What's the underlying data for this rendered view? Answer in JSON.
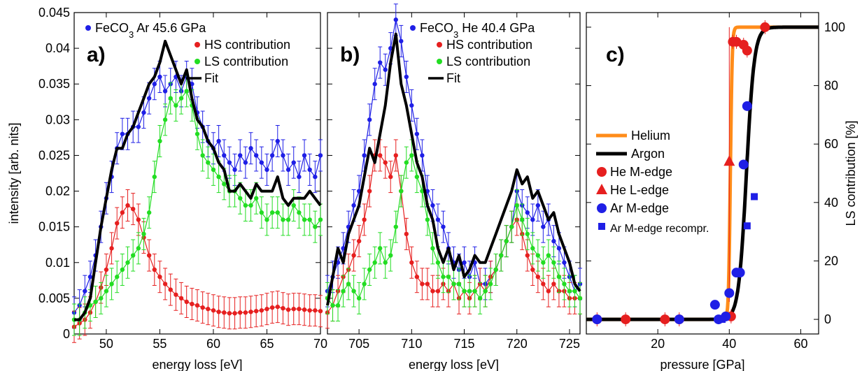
{
  "chart_data": [
    {
      "type": "scatter",
      "panel_label": "a)",
      "xlabel": "energy loss [eV]",
      "ylabel": "intensity [arb. nits]",
      "xlim": [
        47,
        70
      ],
      "ylim": [
        0,
        0.045
      ],
      "xticks": [
        50,
        55,
        60,
        65,
        70
      ],
      "yticks": [
        0,
        0.005,
        0.01,
        0.015,
        0.02,
        0.025,
        0.03,
        0.035,
        0.04,
        0.045
      ],
      "legend": {
        "title_html": [
          "FeCO",
          "3",
          " Ar 45.6 GPa"
        ],
        "entries": [
          "HS contribution",
          "LS contribution",
          "Fit"
        ],
        "placement": "top"
      },
      "series": [
        {
          "name": "FeCO3 Ar 45.6 GPa",
          "color": "#1f1fe6",
          "marker": "dot",
          "errorbars": true,
          "x": [
            47,
            47.5,
            48,
            48.5,
            49,
            49.5,
            50,
            50.5,
            51,
            51.5,
            52,
            52.5,
            53,
            53.5,
            54,
            54.5,
            55,
            55.5,
            56,
            56.5,
            57,
            57.5,
            58,
            58.5,
            59,
            59.5,
            60,
            60.5,
            61,
            61.5,
            62,
            62.5,
            63,
            63.5,
            64,
            64.5,
            65,
            65.5,
            66,
            66.5,
            67,
            67.5,
            68,
            68.5,
            69,
            69.5,
            70
          ],
          "y": [
            0.003,
            0.004,
            0.006,
            0.008,
            0.011,
            0.015,
            0.019,
            0.022,
            0.026,
            0.028,
            0.028,
            0.029,
            0.029,
            0.031,
            0.033,
            0.035,
            0.036,
            0.034,
            0.035,
            0.036,
            0.034,
            0.036,
            0.035,
            0.031,
            0.029,
            0.027,
            0.026,
            0.027,
            0.025,
            0.024,
            0.023,
            0.025,
            0.024,
            0.026,
            0.025,
            0.024,
            0.023,
            0.025,
            0.027,
            0.025,
            0.023,
            0.024,
            0.022,
            0.025,
            0.023,
            0.022,
            0.025
          ]
        },
        {
          "name": "HS contribution",
          "color": "#e61f1f",
          "marker": "dot",
          "errorbars": true,
          "x": [
            47,
            47.5,
            48,
            48.5,
            49,
            49.5,
            50,
            50.5,
            51,
            51.5,
            52,
            52.5,
            53,
            53.5,
            54,
            54.5,
            55,
            55.5,
            56,
            56.5,
            57,
            57.5,
            58,
            58.5,
            59,
            59.5,
            60,
            60.5,
            61,
            61.5,
            62,
            62.5,
            63,
            63.5,
            64,
            64.5,
            65,
            65.5,
            66,
            66.5,
            67,
            67.5,
            68,
            68.5,
            69,
            69.5,
            70
          ],
          "y": [
            0.001,
            0.0015,
            0.002,
            0.003,
            0.0045,
            0.0065,
            0.009,
            0.012,
            0.0155,
            0.017,
            0.018,
            0.0175,
            0.016,
            0.0135,
            0.011,
            0.009,
            0.008,
            0.007,
            0.0062,
            0.0055,
            0.005,
            0.0045,
            0.0042,
            0.004,
            0.0037,
            0.0035,
            0.0033,
            0.0031,
            0.003,
            0.0029,
            0.0029,
            0.003,
            0.003,
            0.0031,
            0.0032,
            0.0033,
            0.0035,
            0.0037,
            0.0038,
            0.0036,
            0.0034,
            0.0035,
            0.0035,
            0.0034,
            0.0033,
            0.0033,
            0.0032
          ]
        },
        {
          "name": "LS contribution",
          "color": "#22dd22",
          "marker": "dot",
          "errorbars": true,
          "x": [
            47,
            47.5,
            48,
            48.5,
            49,
            49.5,
            50,
            50.5,
            51,
            51.5,
            52,
            52.5,
            53,
            53.5,
            54,
            54.5,
            55,
            55.5,
            56,
            56.5,
            57,
            57.5,
            58,
            58.5,
            59,
            59.5,
            60,
            60.5,
            61,
            61.5,
            62,
            62.5,
            63,
            63.5,
            64,
            64.5,
            65,
            65.5,
            66,
            66.5,
            67,
            67.5,
            68,
            68.5,
            69,
            69.5,
            70
          ],
          "y": [
            0.002,
            0.002,
            0.003,
            0.004,
            0.0045,
            0.005,
            0.006,
            0.007,
            0.008,
            0.009,
            0.01,
            0.011,
            0.012,
            0.014,
            0.017,
            0.022,
            0.027,
            0.03,
            0.033,
            0.032,
            0.033,
            0.034,
            0.032,
            0.028,
            0.025,
            0.024,
            0.023,
            0.022,
            0.021,
            0.02,
            0.02,
            0.019,
            0.018,
            0.018,
            0.019,
            0.017,
            0.016,
            0.017,
            0.017,
            0.016,
            0.016,
            0.018,
            0.017,
            0.016,
            0.016,
            0.015,
            0.016
          ]
        },
        {
          "name": "Fit",
          "color": "#000000",
          "marker": "line",
          "x": [
            47,
            47.5,
            48,
            48.5,
            49,
            49.5,
            50,
            50.5,
            51,
            51.5,
            52,
            52.5,
            53,
            53.5,
            54,
            54.5,
            55,
            55.5,
            56,
            56.5,
            57,
            57.5,
            58,
            58.5,
            59,
            59.5,
            60,
            60.5,
            61,
            61.5,
            62,
            62.5,
            63,
            63.5,
            64,
            64.5,
            65,
            65.5,
            66,
            66.5,
            67,
            67.5,
            68,
            68.5,
            69,
            69.5,
            70
          ],
          "y": [
            0.002,
            0.002,
            0.003,
            0.005,
            0.01,
            0.015,
            0.019,
            0.023,
            0.026,
            0.026,
            0.028,
            0.029,
            0.031,
            0.033,
            0.035,
            0.036,
            0.038,
            0.041,
            0.039,
            0.037,
            0.035,
            0.037,
            0.033,
            0.03,
            0.029,
            0.027,
            0.026,
            0.024,
            0.023,
            0.02,
            0.02,
            0.021,
            0.02,
            0.019,
            0.021,
            0.02,
            0.02,
            0.02,
            0.022,
            0.019,
            0.018,
            0.019,
            0.019,
            0.019,
            0.02,
            0.019,
            0.018
          ]
        }
      ]
    },
    {
      "type": "scatter",
      "panel_label": "b)",
      "xlabel": "energy loss [eV]",
      "xlim": [
        702,
        726
      ],
      "ylim": [
        0,
        0.045
      ],
      "xticks": [
        705,
        710,
        715,
        720,
        725
      ],
      "legend": {
        "title_html": [
          "FeCO",
          "3",
          " He 40.4 GPa"
        ],
        "entries": [
          "HS contribution",
          "LS contribution",
          "Fit"
        ],
        "placement": "top"
      },
      "series": [
        {
          "name": "FeCO3 He 40.4 GPa",
          "color": "#1f1fe6",
          "marker": "dot",
          "errorbars": true,
          "x": [
            702,
            702.5,
            703,
            703.5,
            704,
            704.5,
            705,
            705.5,
            706,
            706.5,
            707,
            707.5,
            708,
            708.5,
            709,
            709.5,
            710,
            710.5,
            711,
            711.5,
            712,
            712.5,
            713,
            713.5,
            714,
            714.5,
            715,
            715.5,
            716,
            716.5,
            717,
            717.5,
            718,
            718.5,
            719,
            719.5,
            720,
            720.5,
            721,
            721.5,
            722,
            722.5,
            723,
            723.5,
            724,
            724.5,
            725,
            725.5,
            726
          ],
          "y": [
            0.006,
            0.008,
            0.01,
            0.012,
            0.015,
            0.018,
            0.02,
            0.025,
            0.03,
            0.035,
            0.038,
            0.037,
            0.04,
            0.044,
            0.041,
            0.036,
            0.032,
            0.028,
            0.025,
            0.02,
            0.018,
            0.016,
            0.015,
            0.012,
            0.01,
            0.009,
            0.01,
            0.008,
            0.01,
            0.007,
            0.007,
            0.008,
            0.009,
            0.011,
            0.013,
            0.015,
            0.02,
            0.018,
            0.017,
            0.016,
            0.018,
            0.015,
            0.016,
            0.013,
            0.012,
            0.01,
            0.008,
            0.006,
            0.007
          ]
        },
        {
          "name": "HS contribution",
          "color": "#e61f1f",
          "marker": "dot",
          "errorbars": true,
          "x": [
            702,
            702.5,
            703,
            703.5,
            704,
            704.5,
            705,
            705.5,
            706,
            706.5,
            707,
            707.5,
            708,
            708.5,
            709,
            709.5,
            710,
            710.5,
            711,
            711.5,
            712,
            712.5,
            713,
            713.5,
            714,
            714.5,
            715,
            715.5,
            716,
            716.5,
            717,
            717.5,
            718,
            718.5,
            719,
            719.5,
            720,
            720.5,
            721,
            721.5,
            722,
            722.5,
            723,
            723.5,
            724,
            724.5,
            725,
            725.5,
            726
          ],
          "y": [
            0.003,
            0.004,
            0.006,
            0.008,
            0.009,
            0.011,
            0.013,
            0.016,
            0.02,
            0.025,
            0.025,
            0.024,
            0.022,
            0.025,
            0.02,
            0.014,
            0.01,
            0.008,
            0.007,
            0.007,
            0.006,
            0.006,
            0.007,
            0.006,
            0.007,
            0.005,
            0.006,
            0.005,
            0.006,
            0.007,
            0.006,
            0.008,
            0.009,
            0.011,
            0.013,
            0.015,
            0.016,
            0.014,
            0.011,
            0.009,
            0.008,
            0.007,
            0.006,
            0.007,
            0.006,
            0.006,
            0.005,
            0.005,
            0.005
          ]
        },
        {
          "name": "LS contribution",
          "color": "#22dd22",
          "marker": "dot",
          "errorbars": true,
          "x": [
            702,
            702.5,
            703,
            703.5,
            704,
            704.5,
            705,
            705.5,
            706,
            706.5,
            707,
            707.5,
            708,
            708.5,
            709,
            709.5,
            710,
            710.5,
            711,
            711.5,
            712,
            712.5,
            713,
            713.5,
            714,
            714.5,
            715,
            715.5,
            716,
            716.5,
            717,
            717.5,
            718,
            718.5,
            719,
            719.5,
            720,
            720.5,
            721,
            721.5,
            722,
            722.5,
            723,
            723.5,
            724,
            724.5,
            725,
            725.5,
            726
          ],
          "y": [
            0.005,
            0.004,
            0.004,
            0.006,
            0.007,
            0.006,
            0.005,
            0.007,
            0.009,
            0.01,
            0.012,
            0.01,
            0.011,
            0.015,
            0.02,
            0.024,
            0.025,
            0.022,
            0.02,
            0.016,
            0.012,
            0.01,
            0.008,
            0.008,
            0.007,
            0.007,
            0.006,
            0.006,
            0.006,
            0.005,
            0.006,
            0.007,
            0.009,
            0.011,
            0.013,
            0.015,
            0.018,
            0.016,
            0.014,
            0.012,
            0.011,
            0.01,
            0.011,
            0.01,
            0.008,
            0.007,
            0.006,
            0.006,
            0.005
          ]
        },
        {
          "name": "Fit",
          "color": "#000000",
          "marker": "line",
          "x": [
            702,
            702.5,
            703,
            703.5,
            704,
            704.5,
            705,
            705.5,
            706,
            706.5,
            707,
            707.5,
            708,
            708.5,
            709,
            709.5,
            710,
            710.5,
            711,
            711.5,
            712,
            712.5,
            713,
            713.5,
            714,
            714.5,
            715,
            715.5,
            716,
            716.5,
            717,
            717.5,
            718,
            718.5,
            719,
            719.5,
            720,
            720.5,
            721,
            721.5,
            722,
            722.5,
            723,
            723.5,
            724,
            724.5,
            725,
            725.5,
            726
          ],
          "y": [
            0.004,
            0.008,
            0.012,
            0.01,
            0.014,
            0.016,
            0.018,
            0.022,
            0.026,
            0.024,
            0.028,
            0.032,
            0.038,
            0.042,
            0.035,
            0.032,
            0.028,
            0.024,
            0.022,
            0.018,
            0.016,
            0.012,
            0.01,
            0.012,
            0.009,
            0.011,
            0.008,
            0.009,
            0.011,
            0.01,
            0.01,
            0.012,
            0.014,
            0.016,
            0.018,
            0.02,
            0.023,
            0.021,
            0.022,
            0.019,
            0.02,
            0.018,
            0.016,
            0.017,
            0.014,
            0.012,
            0.01,
            0.007,
            0.006
          ]
        }
      ]
    },
    {
      "type": "scatter",
      "panel_label": "c)",
      "xlabel": "pressure [GPa]",
      "ylabel": "LS contribution [%]",
      "xlim": [
        0,
        65
      ],
      "ylim": [
        -5,
        105
      ],
      "xticks": [
        0,
        20,
        40,
        60
      ],
      "yticks": [
        0,
        20,
        40,
        60,
        80,
        100
      ],
      "yaxis_side": "right",
      "legend": {
        "entries": [
          "Helium",
          "Argon",
          "He M-edge",
          "He L-edge",
          "Ar M-edge",
          "Ar M-edge recompr."
        ],
        "placement": "center-left"
      },
      "series": [
        {
          "name": "Helium",
          "color": "#ff8c1a",
          "marker": "line",
          "transition": 40.3,
          "width": 0.25
        },
        {
          "name": "Argon",
          "color": "#000000",
          "marker": "line",
          "transition": 44.8,
          "width": 1.1
        },
        {
          "name": "He M-edge",
          "color": "#e61f1f",
          "marker": "circle",
          "x": [
            3,
            11,
            22,
            26,
            40.5,
            41,
            42,
            44,
            45,
            50
          ],
          "y": [
            0,
            0,
            0,
            0,
            1,
            95,
            95,
            94,
            92,
            100
          ]
        },
        {
          "name": "He L-edge",
          "color": "#e61f1f",
          "marker": "triangle",
          "x": [
            40
          ],
          "y": [
            54
          ]
        },
        {
          "name": "Ar M-edge",
          "color": "#1f1fe6",
          "marker": "circle",
          "x": [
            3,
            26,
            36,
            37,
            39,
            40,
            42,
            43,
            44,
            45
          ],
          "y": [
            0,
            0,
            5,
            0,
            1,
            9,
            16,
            16,
            53,
            73
          ]
        },
        {
          "name": "Ar M-edge recompr.",
          "color": "#1f1fe6",
          "marker": "square",
          "x": [
            38,
            45,
            47
          ],
          "y": [
            0,
            32,
            42
          ]
        }
      ]
    }
  ]
}
